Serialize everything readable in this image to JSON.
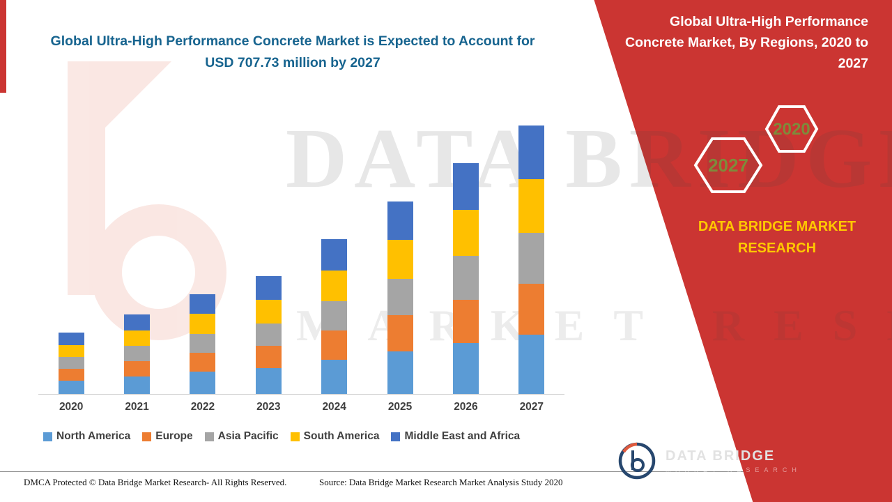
{
  "header": {
    "left_title": "Global Ultra-High Performance Concrete Market is Expected to Account for USD 707.73 million by 2027",
    "right_title": "Global Ultra-High Performance Concrete Market, By Regions, 2020 to 2027"
  },
  "brand": {
    "heading": "DATA BRIDGE MARKET RESEARCH",
    "hex_front": "2027",
    "hex_back": "2020"
  },
  "watermark": {
    "line1": "DATA BRIDGE",
    "line2": "MARKET RESEARCH"
  },
  "logo": {
    "title": "DATA BRIDGE",
    "subtitle": "MARKET RESEARCH"
  },
  "footer": {
    "dmca": "DMCA Protected © Data Bridge Market Research- All Rights Reserved.",
    "source": "Source: Data Bridge Market Research Market Analysis Study 2020"
  },
  "colors": {
    "panel_red": "#CB3532",
    "title_teal": "#17648F",
    "brand_yellow": "#FFC800",
    "hex_text": "#7E8B3B"
  },
  "chart_data": {
    "type": "bar",
    "stacked": true,
    "title": "Global Ultra-High Performance Concrete Market is Expected to Account for USD 707.73 million by 2027",
    "unit": "USD million",
    "categories": [
      "2020",
      "2021",
      "2022",
      "2023",
      "2024",
      "2025",
      "2026",
      "2027"
    ],
    "series": [
      {
        "name": "North America",
        "color": "#5B9BD5",
        "values": [
          35,
          46,
          58,
          68,
          90,
          112,
          134,
          156
        ]
      },
      {
        "name": "Europe",
        "color": "#ED7D31",
        "values": [
          31,
          40,
          50,
          59,
          77,
          96,
          115,
          134
        ]
      },
      {
        "name": "Asia Pacific",
        "color": "#A5A5A5",
        "values": [
          31,
          40,
          50,
          59,
          77,
          96,
          115,
          134
        ]
      },
      {
        "name": "South America",
        "color": "#FFC000",
        "values": [
          32,
          42,
          53,
          62,
          82,
          102,
          122,
          142
        ]
      },
      {
        "name": "Middle East and Africa",
        "color": "#4472C4",
        "values": [
          32,
          41,
          52,
          63,
          82,
          102,
          122,
          141.73
        ]
      }
    ],
    "totals_by_year": [
      161,
      209,
      263,
      311,
      408,
      508,
      608,
      707.73
    ],
    "ylim": [
      0,
      750
    ],
    "grid": false,
    "y_axis_visible": false,
    "legend_position": "bottom"
  }
}
